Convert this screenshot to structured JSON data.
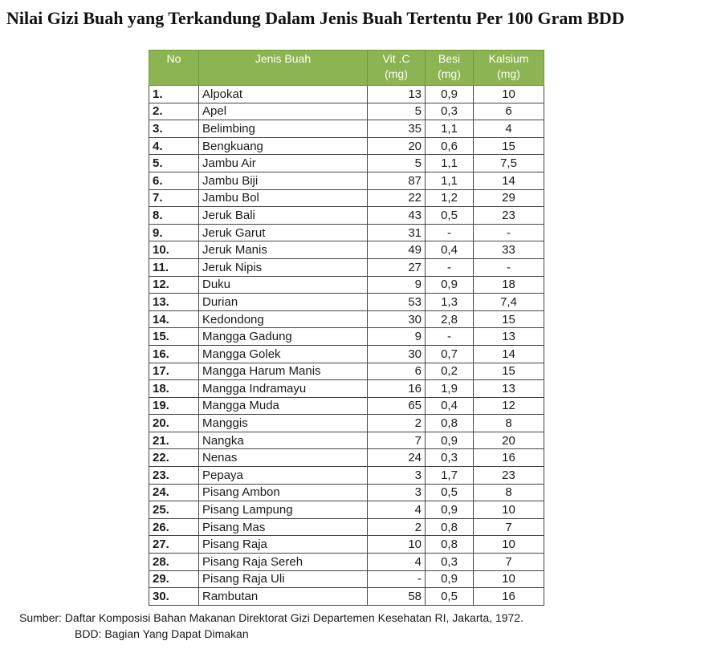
{
  "title": "Nilai Gizi Buah yang Terkandung Dalam Jenis Buah Tertentu Per 100 Gram BDD",
  "table": {
    "header_color": "#8cb453",
    "headers": {
      "no": "No",
      "jenis_buah": "Jenis Buah",
      "vit_c_line1": "Vit .C",
      "vit_c_line2": "(mg)",
      "besi_line1": "Besi",
      "besi_line2": "(mg)",
      "kalsium_line1": "Kalsium",
      "kalsium_line2": "(mg)"
    },
    "rows": [
      {
        "no": "1.",
        "name": "Alpokat",
        "vitc": "13",
        "besi": "0,9",
        "kalsium": "10"
      },
      {
        "no": "2.",
        "name": "Apel",
        "vitc": "5",
        "besi": "0,3",
        "kalsium": "6"
      },
      {
        "no": "3.",
        "name": "Belimbing",
        "vitc": "35",
        "besi": "1,1",
        "kalsium": "4"
      },
      {
        "no": "4.",
        "name": "Bengkuang",
        "vitc": "20",
        "besi": "0,6",
        "kalsium": "15"
      },
      {
        "no": "5.",
        "name": "Jambu Air",
        "vitc": "5",
        "besi": "1,1",
        "kalsium": "7,5"
      },
      {
        "no": "6.",
        "name": "Jambu Biji",
        "vitc": "87",
        "besi": "1,1",
        "kalsium": "14"
      },
      {
        "no": "7.",
        "name": "Jambu Bol",
        "vitc": "22",
        "besi": "1,2",
        "kalsium": "29"
      },
      {
        "no": "8.",
        "name": "Jeruk Bali",
        "vitc": "43",
        "besi": "0,5",
        "kalsium": "23"
      },
      {
        "no": "9.",
        "name": "Jeruk Garut",
        "vitc": "31",
        "besi": "-",
        "kalsium": "-"
      },
      {
        "no": "10.",
        "name": "Jeruk Manis",
        "vitc": "49",
        "besi": "0,4",
        "kalsium": "33"
      },
      {
        "no": "11.",
        "name": "Jeruk Nipis",
        "vitc": "27",
        "besi": "-",
        "kalsium": "-"
      },
      {
        "no": "12.",
        "name": "Duku",
        "vitc": "9",
        "besi": "0,9",
        "kalsium": "18"
      },
      {
        "no": "13.",
        "name": "Durian",
        "vitc": "53",
        "besi": "1,3",
        "kalsium": "7,4"
      },
      {
        "no": "14.",
        "name": "Kedondong",
        "vitc": "30",
        "besi": "2,8",
        "kalsium": "15"
      },
      {
        "no": "15.",
        "name": "Mangga Gadung",
        "vitc": "9",
        "besi": "-",
        "kalsium": "13"
      },
      {
        "no": "16.",
        "name": "Mangga Golek",
        "vitc": "30",
        "besi": "0,7",
        "kalsium": "14"
      },
      {
        "no": "17.",
        "name": "Mangga Harum Manis",
        "vitc": "6",
        "besi": "0,2",
        "kalsium": "15"
      },
      {
        "no": "18.",
        "name": "Mangga Indramayu",
        "vitc": "16",
        "besi": "1,9",
        "kalsium": "13"
      },
      {
        "no": "19.",
        "name": "Mangga Muda",
        "vitc": "65",
        "besi": "0,4",
        "kalsium": "12"
      },
      {
        "no": "20.",
        "name": "Manggis",
        "vitc": "2",
        "besi": "0,8",
        "kalsium": "8"
      },
      {
        "no": "21.",
        "name": "Nangka",
        "vitc": "7",
        "besi": "0,9",
        "kalsium": "20"
      },
      {
        "no": "22.",
        "name": "Nenas",
        "vitc": "24",
        "besi": "0,3",
        "kalsium": "16"
      },
      {
        "no": "23.",
        "name": "Pepaya",
        "vitc": "3",
        "besi": "1,7",
        "kalsium": "23"
      },
      {
        "no": "24.",
        "name": "Pisang Ambon",
        "vitc": "3",
        "besi": "0,5",
        "kalsium": "8"
      },
      {
        "no": "25.",
        "name": "Pisang Lampung",
        "vitc": "4",
        "besi": "0,9",
        "kalsium": "10"
      },
      {
        "no": "26.",
        "name": "Pisang Mas",
        "vitc": "2",
        "besi": "0,8",
        "kalsium": "7"
      },
      {
        "no": "27.",
        "name": "Pisang Raja",
        "vitc": "10",
        "besi": "0,8",
        "kalsium": "10"
      },
      {
        "no": "28.",
        "name": "Pisang Raja Sereh",
        "vitc": "4",
        "besi": "0,3",
        "kalsium": "7"
      },
      {
        "no": "29.",
        "name": "Pisang Raja Uli",
        "vitc": "-",
        "besi": "0,9",
        "kalsium": "10"
      },
      {
        "no": "30.",
        "name": "Rambutan",
        "vitc": "58",
        "besi": "0,5",
        "kalsium": "16"
      }
    ]
  },
  "footer": {
    "source": "Sumber: Daftar Komposisi Bahan Makanan Direktorat Gizi Departemen Kesehatan RI, Jakarta, 1972.",
    "note": "BDD: Bagian Yang Dapat Dimakan"
  }
}
